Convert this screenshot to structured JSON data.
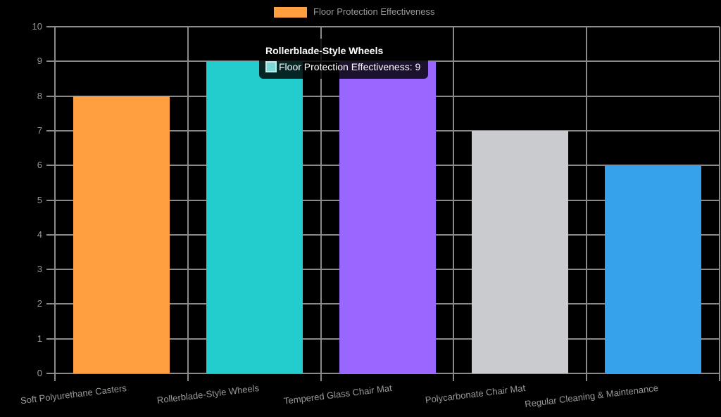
{
  "legend": {
    "label": "Floor Protection Effectiveness",
    "swatch_color": "#FF9F40"
  },
  "tooltip": {
    "title": "Rollerblade-Style Wheels",
    "body": "Floor Protection Effectiveness: 9",
    "swatch_color": "#7ED7D7"
  },
  "chart_data": {
    "type": "bar",
    "title": "",
    "xlabel": "",
    "ylabel": "",
    "categories": [
      "Soft Polyurethane Casters",
      "Rollerblade-Style Wheels",
      "Tempered Glass Chair Mat",
      "Polycarbonate Chair Mat",
      "Regular Cleaning & Maintenance"
    ],
    "series": [
      {
        "name": "Floor Protection Effectiveness",
        "values": [
          8,
          9,
          9,
          7,
          6
        ]
      }
    ],
    "bar_colors": [
      "#FF9F40",
      "#23CDCD",
      "#9966FF",
      "#C9CBCF",
      "#36A2EB"
    ],
    "ylim": [
      0,
      10
    ],
    "ytick_step": 1,
    "grid": true,
    "legend_position": "top",
    "background_color": "#000000",
    "grid_color": "#8A8A8A",
    "tick_text_color": "#999999"
  }
}
